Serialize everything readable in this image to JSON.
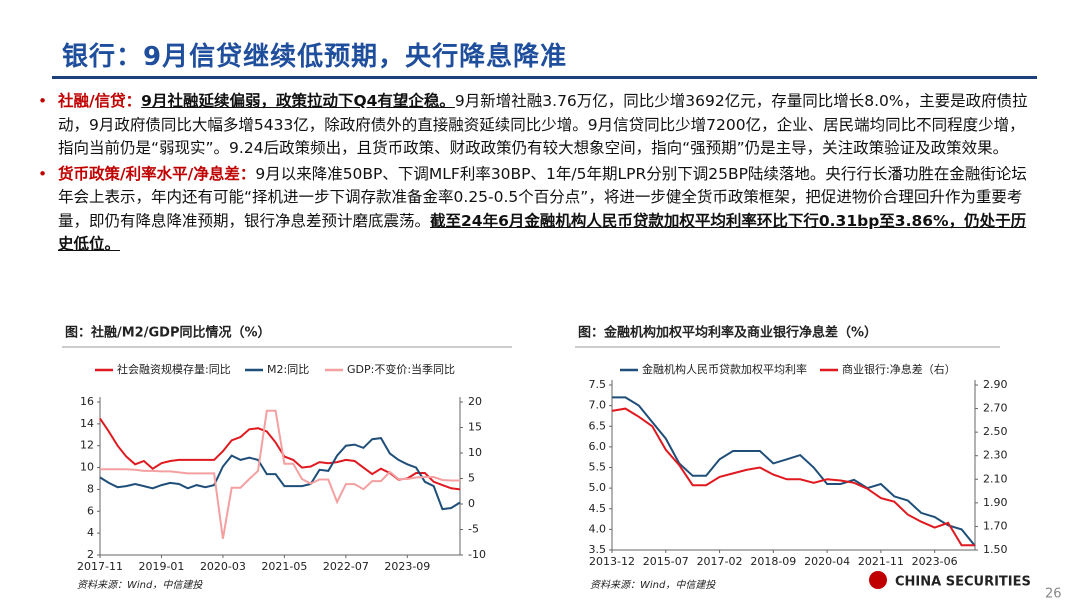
{
  "header": {
    "title": "银行：9月信贷继续低预期，央行降息降准"
  },
  "bullets": [
    {
      "label": "社融/信贷：",
      "emphasis": "9月社融延续偏弱，政策拉动下Q4有望企稳。",
      "text": "9月新增社融3.76万亿，同比少增3692亿元，存量同比增长8.0%，主要是政府债拉动，9月政府债同比大幅多增5433亿，除政府债外的直接融资延续同比少增。9月信贷同比少增7200亿，企业、居民端均同比不同程度少增，指向当前仍是“弱现实”。9.24后政策频出，且货币政策、财政政策仍有较大想象空间，指向“强预期”仍是主导，关注政策验证及政策效果。"
    },
    {
      "label": "货币政策/利率水平/净息差：",
      "text": "9月以来降准50BP、下调MLF利率30BP、1年/5年期LPR分别下调25BP陆续落地。央行行长潘功胜在金融街论坛年会上表示，年内还有可能“择机进一步下调存款准备金率0.25-0.5个百分点”，将进一步健全货币政策框架，把促进物价合理回升作为重要考量，即仍有降息降准预期，银行净息差预计磨底震荡。",
      "emphasis": "截至24年6月金融机构人民币贷款加权平均利率环比下行0.31bp至3.86%，仍处于历史低位。"
    }
  ],
  "chart_data": [
    {
      "type": "line",
      "title": "图：社融/M2/GDP同比情况（%）",
      "categories": [
        "2017-11",
        null,
        null,
        null,
        null,
        null,
        null,
        "2019-01",
        null,
        null,
        null,
        null,
        null,
        null,
        "2020-03",
        null,
        null,
        null,
        null,
        null,
        null,
        "2021-05",
        null,
        null,
        null,
        null,
        null,
        null,
        "2022-07",
        null,
        null,
        null,
        null,
        null,
        null,
        "2023-09",
        null,
        null,
        null,
        null,
        null,
        null
      ],
      "series": [
        {
          "name": "社会融资规模存量:同比",
          "color": "#e0191f",
          "values": [
            14.5,
            13.3,
            12.0,
            11.0,
            10.3,
            10.6,
            9.9,
            10.4,
            10.6,
            10.7,
            10.7,
            10.7,
            10.7,
            10.7,
            11.5,
            12.5,
            12.8,
            13.5,
            13.6,
            13.3,
            12.3,
            11.0,
            10.7,
            10.0,
            10.1,
            10.5,
            10.4,
            10.5,
            10.7,
            10.6,
            10.0,
            9.4,
            9.9,
            9.5,
            8.9,
            9.0,
            9.5,
            9.5,
            8.7,
            8.4,
            8.1,
            8.0
          ]
        },
        {
          "name": "M2:同比",
          "color": "#1f4e79",
          "values": [
            9.1,
            8.6,
            8.2,
            8.3,
            8.5,
            8.3,
            8.1,
            8.4,
            8.6,
            8.5,
            8.1,
            8.4,
            8.2,
            8.4,
            10.1,
            11.1,
            10.7,
            10.9,
            10.7,
            9.4,
            9.4,
            8.3,
            8.3,
            8.3,
            8.5,
            9.8,
            9.7,
            11.1,
            12.0,
            12.1,
            11.8,
            12.6,
            12.7,
            11.3,
            10.7,
            10.3,
            10.0,
            8.7,
            8.3,
            6.2,
            6.3,
            6.8
          ]
        },
        {
          "name": "GDP:不变价:当季同比",
          "color": "#f4a0a0",
          "axis": "y2",
          "values": [
            6.8,
            6.8,
            6.8,
            6.8,
            6.7,
            6.5,
            6.5,
            6.4,
            6.4,
            6.2,
            6.0,
            6.0,
            6.0,
            6.0,
            -6.8,
            3.2,
            3.2,
            4.9,
            6.5,
            18.3,
            18.3,
            7.9,
            7.9,
            4.9,
            4.0,
            4.8,
            4.8,
            0.4,
            3.9,
            3.9,
            2.9,
            4.5,
            4.5,
            6.3,
            4.9,
            4.9,
            5.2,
            5.3,
            5.3,
            4.7,
            4.6,
            4.6
          ]
        }
      ],
      "ylim": [
        2,
        16
      ],
      "yticks": [
        2,
        4,
        6,
        8,
        10,
        12,
        14,
        16
      ],
      "y2lim": [
        -10,
        20
      ],
      "y2ticks": [
        -10,
        -5,
        0,
        5,
        10,
        15,
        20
      ],
      "source": "资料来源：Wind，中信建投"
    },
    {
      "type": "line",
      "title": "图：金融机构加权平均利率及商业银行净息差（%）",
      "categories": [
        "2013-12",
        null,
        null,
        null,
        "2015-07",
        null,
        null,
        null,
        "2017-02",
        null,
        null,
        null,
        "2018-09",
        null,
        null,
        null,
        "2020-04",
        null,
        null,
        null,
        "2021-11",
        null,
        null,
        null,
        "2023-06",
        null,
        null,
        null
      ],
      "series": [
        {
          "name": "金融机构人民币贷款加权平均利率",
          "color": "#1f4e79",
          "values": [
            7.2,
            7.2,
            7.0,
            6.6,
            6.2,
            5.6,
            5.3,
            5.3,
            5.7,
            5.9,
            5.9,
            5.9,
            5.6,
            5.7,
            5.8,
            5.5,
            5.1,
            5.1,
            5.2,
            5.0,
            5.1,
            4.8,
            4.7,
            4.4,
            4.3,
            4.1,
            4.0,
            3.6
          ]
        },
        {
          "name": "商业银行:净息差（右）",
          "color": "#e0191f",
          "axis": "y2",
          "values": [
            2.68,
            2.7,
            2.63,
            2.55,
            2.35,
            2.22,
            2.05,
            2.05,
            2.12,
            2.15,
            2.18,
            2.2,
            2.14,
            2.1,
            2.1,
            2.07,
            2.1,
            2.09,
            2.07,
            2.02,
            1.94,
            1.91,
            1.8,
            1.74,
            1.69,
            1.73,
            1.54,
            1.54
          ]
        }
      ],
      "ylim": [
        3.5,
        7.5
      ],
      "yticks": [
        3.5,
        {
          "value": 4,
          "label": "4.0"
        },
        4.5,
        {
          "value": 5,
          "label": "5.0"
        },
        5.5,
        {
          "value": 6,
          "label": "6.0"
        },
        6.5,
        {
          "value": 7,
          "label": "7.0"
        },
        7.5
      ],
      "y2lim": [
        1.5,
        2.9
      ],
      "y2ticks": [
        {
          "value": 1.5,
          "label": "1.50"
        },
        {
          "value": 1.7,
          "label": "1.70"
        },
        {
          "value": 1.9,
          "label": "1.90"
        },
        {
          "value": 2.1,
          "label": "2.10"
        },
        {
          "value": 2.3,
          "label": "2.30"
        },
        {
          "value": 2.5,
          "label": "2.50"
        },
        {
          "value": 2.7,
          "label": "2.70"
        },
        {
          "value": 2.9,
          "label": "2.90"
        }
      ],
      "source": "资料来源：Wind，中信建投"
    }
  ],
  "logo": "CHINA SECURITIES",
  "page_number": "26"
}
